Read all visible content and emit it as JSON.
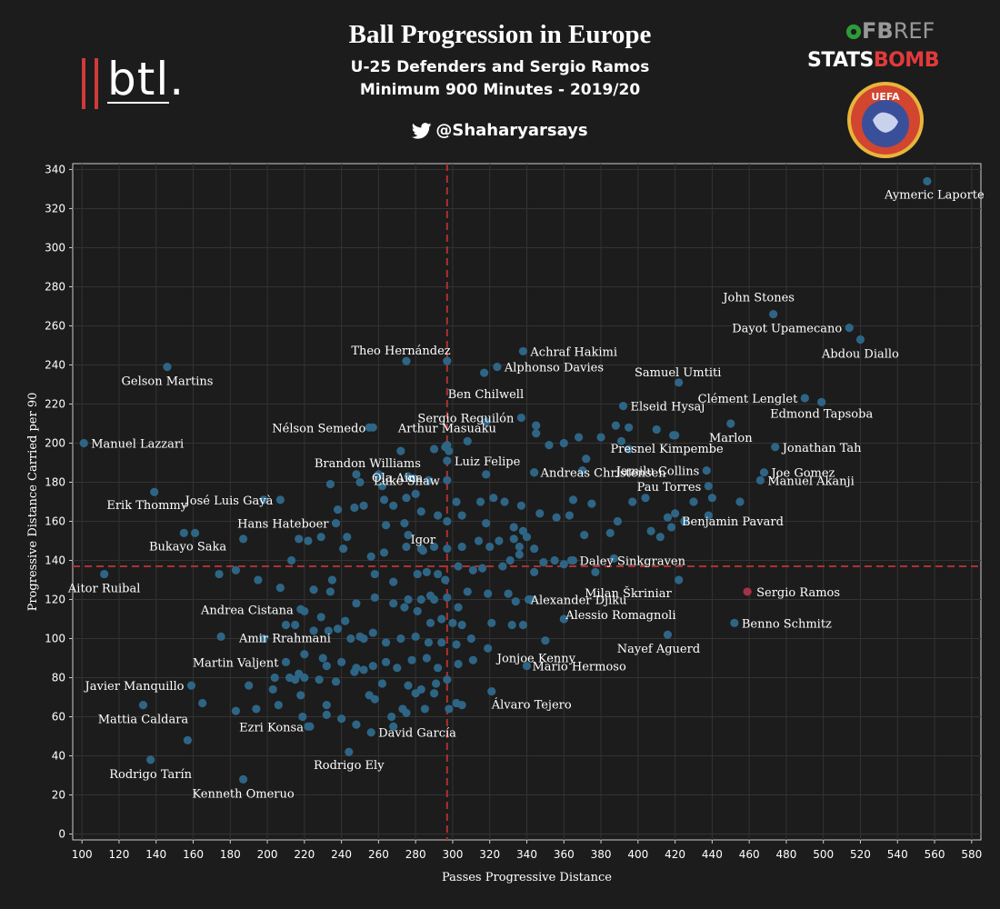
{
  "header": {
    "title": "Ball Progression in Europe",
    "subtitle1": "U-25 Defenders and Sergio Ramos",
    "subtitle2": "Minimum 900 Minutes - 2019/20",
    "twitter": "@Shaharyarsays"
  },
  "logos": {
    "btl": "btl.",
    "fbref_a": "FB",
    "fbref_b": "REF",
    "statsbomb_a": "STATS",
    "statsbomb_b": "BOMB",
    "uefa": "UEFA"
  },
  "colors": {
    "background": "#1c1c1c",
    "point": "#2e6585",
    "highlight": "#a8304a",
    "mean_line": "#b03030",
    "grid": "#333333"
  },
  "chart_data": {
    "type": "scatter",
    "xlabel": "Passes Progressive Distance",
    "ylabel": "Progressive Distance Carried per 90",
    "xlim": [
      95,
      585
    ],
    "ylim": [
      -3,
      343
    ],
    "xticks": [
      100,
      120,
      140,
      160,
      180,
      200,
      220,
      240,
      260,
      280,
      300,
      320,
      340,
      360,
      380,
      400,
      420,
      440,
      460,
      480,
      500,
      520,
      540,
      560,
      580
    ],
    "yticks": [
      0,
      20,
      40,
      60,
      80,
      100,
      120,
      140,
      160,
      180,
      200,
      220,
      240,
      260,
      280,
      300,
      320,
      340
    ],
    "grid": true,
    "mean_x": 297,
    "mean_y": 137,
    "highlight": {
      "name": "Sergio Ramos",
      "x": 459,
      "y": 124
    },
    "labeled_points": [
      {
        "name": "Aymeric Laporte",
        "x": 556,
        "y": 334
      },
      {
        "name": "John Stones",
        "x": 473,
        "y": 266
      },
      {
        "name": "Dayot Upamecano",
        "x": 514,
        "y": 259
      },
      {
        "name": "Abdou Diallo",
        "x": 520,
        "y": 253
      },
      {
        "name": "Gelson Martins",
        "x": 146,
        "y": 239
      },
      {
        "name": "Theo Hernández",
        "x": 275,
        "y": 242
      },
      {
        "name": "Achraf Hakimi",
        "x": 338,
        "y": 247
      },
      {
        "name": "Alphonso Davies",
        "x": 324,
        "y": 239
      },
      {
        "name": "Ben Chilwell",
        "x": 317,
        "y": 236
      },
      {
        "name": "Samuel Umtiti",
        "x": 422,
        "y": 231
      },
      {
        "name": "Clément Lenglet",
        "x": 490,
        "y": 223
      },
      {
        "name": "Edmond Tapsoba",
        "x": 499,
        "y": 221
      },
      {
        "name": "Elseid Hysaj",
        "x": 392,
        "y": 219
      },
      {
        "name": "Sergio Reguilón",
        "x": 337,
        "y": 213
      },
      {
        "name": "Nélson Semedo",
        "x": 257,
        "y": 208
      },
      {
        "name": "Arthur Masuaku",
        "x": 297,
        "y": 199
      },
      {
        "name": "Manuel Lazzari",
        "x": 101,
        "y": 200
      },
      {
        "name": "Marlon",
        "x": 450,
        "y": 210
      },
      {
        "name": "Jonathan Tah",
        "x": 474,
        "y": 198
      },
      {
        "name": "Presnel Kimpembe",
        "x": 419,
        "y": 204
      },
      {
        "name": "Luiz Felipe",
        "x": 297,
        "y": 191
      },
      {
        "name": "Brandon Williams",
        "x": 260,
        "y": 184
      },
      {
        "name": "Ola Aina",
        "x": 279,
        "y": 182
      },
      {
        "name": "Jamilu Collins",
        "x": 437,
        "y": 186
      },
      {
        "name": "Joe Gomez",
        "x": 468,
        "y": 185
      },
      {
        "name": "Luke Shaw",
        "x": 297,
        "y": 181
      },
      {
        "name": "Andreas Christensen",
        "x": 344,
        "y": 185
      },
      {
        "name": "Pau Torres",
        "x": 438,
        "y": 178
      },
      {
        "name": "Manuel Akanji",
        "x": 466,
        "y": 181
      },
      {
        "name": "José Luis Gayà",
        "x": 207,
        "y": 171
      },
      {
        "name": "Erik Thommy",
        "x": 139,
        "y": 175
      },
      {
        "name": "Benjamin Pavard",
        "x": 455,
        "y": 170
      },
      {
        "name": "Hans Hateboer",
        "x": 237,
        "y": 159
      },
      {
        "name": "Bukayo Saka",
        "x": 161,
        "y": 154
      },
      {
        "name": "Igor",
        "x": 284,
        "y": 145
      },
      {
        "name": "Daley Sinkgraven",
        "x": 365,
        "y": 140
      },
      {
        "name": "Aitor Ruibal",
        "x": 112,
        "y": 133
      },
      {
        "name": "Milan Škriniar",
        "x": 422,
        "y": 130
      },
      {
        "name": "Alexander Djiku",
        "x": 342,
        "y": 120
      },
      {
        "name": "Andrea Cistana",
        "x": 218,
        "y": 115
      },
      {
        "name": "Alessio Romagnoli",
        "x": 360,
        "y": 110
      },
      {
        "name": "Benno Schmitz",
        "x": 452,
        "y": 108
      },
      {
        "name": "Amir Rrahmani",
        "x": 210,
        "y": 107
      },
      {
        "name": "Nayef Aguerd",
        "x": 416,
        "y": 102
      },
      {
        "name": "Jonjoe Kenny",
        "x": 350,
        "y": 99
      },
      {
        "name": "Martin Valjent",
        "x": 210,
        "y": 88
      },
      {
        "name": "Mario Hermoso",
        "x": 340,
        "y": 86
      },
      {
        "name": "Javier Manquillo",
        "x": 159,
        "y": 76
      },
      {
        "name": "Álvaro Tejero",
        "x": 321,
        "y": 73
      },
      {
        "name": "Mattia Caldara",
        "x": 133,
        "y": 66
      },
      {
        "name": "Ezri Konsa",
        "x": 223,
        "y": 55
      },
      {
        "name": "David García",
        "x": 256,
        "y": 52
      },
      {
        "name": "Rodrigo Ely",
        "x": 244,
        "y": 42
      },
      {
        "name": "Rodrigo Tarín",
        "x": 137,
        "y": 38
      },
      {
        "name": "Kenneth Omeruo",
        "x": 187,
        "y": 28
      }
    ],
    "other_points": [
      [
        255,
        208
      ],
      [
        297,
        242
      ],
      [
        345,
        209
      ],
      [
        352,
        199
      ],
      [
        368,
        203
      ],
      [
        380,
        203
      ],
      [
        391,
        201
      ],
      [
        395,
        197
      ],
      [
        410,
        207
      ],
      [
        420,
        204
      ],
      [
        395,
        208
      ],
      [
        388,
        209
      ],
      [
        360,
        200
      ],
      [
        345,
        205
      ],
      [
        318,
        211
      ],
      [
        308,
        201
      ],
      [
        290,
        197
      ],
      [
        296,
        198
      ],
      [
        272,
        196
      ],
      [
        298,
        196
      ],
      [
        248,
        184
      ],
      [
        260,
        183
      ],
      [
        276,
        183
      ],
      [
        287,
        181
      ],
      [
        318,
        184
      ],
      [
        344,
        185
      ],
      [
        370,
        186
      ],
      [
        372,
        192
      ],
      [
        250,
        180
      ],
      [
        234,
        179
      ],
      [
        262,
        178
      ],
      [
        263,
        171
      ],
      [
        268,
        168
      ],
      [
        252,
        168
      ],
      [
        247,
        167
      ],
      [
        275,
        172
      ],
      [
        280,
        174
      ],
      [
        302,
        170
      ],
      [
        315,
        170
      ],
      [
        328,
        170
      ],
      [
        322,
        172
      ],
      [
        337,
        168
      ],
      [
        347,
        164
      ],
      [
        365,
        171
      ],
      [
        375,
        169
      ],
      [
        397,
        170
      ],
      [
        404,
        172
      ],
      [
        420,
        164
      ],
      [
        425,
        160
      ],
      [
        438,
        163
      ],
      [
        198,
        171
      ],
      [
        238,
        166
      ],
      [
        264,
        158
      ],
      [
        274,
        159
      ],
      [
        283,
        165
      ],
      [
        292,
        163
      ],
      [
        297,
        160
      ],
      [
        305,
        163
      ],
      [
        318,
        159
      ],
      [
        333,
        157
      ],
      [
        338,
        155
      ],
      [
        356,
        162
      ],
      [
        363,
        163
      ],
      [
        371,
        153
      ],
      [
        385,
        154
      ],
      [
        389,
        160
      ],
      [
        407,
        155
      ],
      [
        412,
        152
      ],
      [
        416,
        162
      ],
      [
        418,
        157
      ],
      [
        440,
        172
      ],
      [
        430,
        170
      ],
      [
        155,
        154
      ],
      [
        187,
        151
      ],
      [
        217,
        151
      ],
      [
        222,
        150
      ],
      [
        229,
        152
      ],
      [
        241,
        146
      ],
      [
        256,
        142
      ],
      [
        263,
        144
      ],
      [
        275,
        147
      ],
      [
        283,
        146
      ],
      [
        290,
        147
      ],
      [
        297,
        146
      ],
      [
        305,
        147
      ],
      [
        314,
        150
      ],
      [
        320,
        147
      ],
      [
        325,
        150
      ],
      [
        333,
        151
      ],
      [
        336,
        147
      ],
      [
        340,
        152
      ],
      [
        344,
        146
      ],
      [
        276,
        153
      ],
      [
        243,
        152
      ],
      [
        213,
        140
      ],
      [
        235,
        130
      ],
      [
        258,
        133
      ],
      [
        268,
        129
      ],
      [
        281,
        133
      ],
      [
        286,
        134
      ],
      [
        292,
        133
      ],
      [
        296,
        130
      ],
      [
        303,
        137
      ],
      [
        311,
        135
      ],
      [
        316,
        136
      ],
      [
        327,
        137
      ],
      [
        331,
        140
      ],
      [
        336,
        143
      ],
      [
        344,
        134
      ],
      [
        349,
        139
      ],
      [
        355,
        140
      ],
      [
        360,
        138
      ],
      [
        364,
        140
      ],
      [
        377,
        134
      ],
      [
        387,
        141
      ],
      [
        174,
        133
      ],
      [
        183,
        135
      ],
      [
        195,
        130
      ],
      [
        207,
        126
      ],
      [
        225,
        125
      ],
      [
        234,
        124
      ],
      [
        248,
        118
      ],
      [
        258,
        121
      ],
      [
        268,
        118
      ],
      [
        274,
        116
      ],
      [
        283,
        120
      ],
      [
        290,
        120
      ],
      [
        297,
        121
      ],
      [
        303,
        116
      ],
      [
        308,
        124
      ],
      [
        319,
        123
      ],
      [
        330,
        123
      ],
      [
        334,
        119
      ],
      [
        341,
        120
      ],
      [
        288,
        122
      ],
      [
        276,
        120
      ],
      [
        281,
        114
      ],
      [
        220,
        114
      ],
      [
        229,
        111
      ],
      [
        238,
        105
      ],
      [
        242,
        109
      ],
      [
        250,
        101
      ],
      [
        257,
        103
      ],
      [
        264,
        98
      ],
      [
        272,
        100
      ],
      [
        280,
        101
      ],
      [
        287,
        98
      ],
      [
        294,
        98
      ],
      [
        302,
        97
      ],
      [
        310,
        100
      ],
      [
        319,
        95
      ],
      [
        321,
        108
      ],
      [
        332,
        107
      ],
      [
        338,
        107
      ],
      [
        288,
        108
      ],
      [
        294,
        110
      ],
      [
        300,
        108
      ],
      [
        305,
        107
      ],
      [
        245,
        100
      ],
      [
        252,
        100
      ],
      [
        233,
        104
      ],
      [
        225,
        104
      ],
      [
        215,
        107
      ],
      [
        175,
        101
      ],
      [
        198,
        100
      ],
      [
        220,
        92
      ],
      [
        230,
        90
      ],
      [
        240,
        88
      ],
      [
        248,
        85
      ],
      [
        257,
        86
      ],
      [
        264,
        88
      ],
      [
        270,
        85
      ],
      [
        278,
        89
      ],
      [
        286,
        90
      ],
      [
        292,
        85
      ],
      [
        303,
        87
      ],
      [
        311,
        89
      ],
      [
        217,
        82
      ],
      [
        232,
        86
      ],
      [
        220,
        80
      ],
      [
        228,
        79
      ],
      [
        237,
        78
      ],
      [
        247,
        83
      ],
      [
        252,
        84
      ],
      [
        204,
        80
      ],
      [
        212,
        80
      ],
      [
        215,
        79
      ],
      [
        190,
        76
      ],
      [
        194,
        64
      ],
      [
        183,
        63
      ],
      [
        276,
        76
      ],
      [
        283,
        74
      ],
      [
        291,
        77
      ],
      [
        297,
        79
      ],
      [
        302,
        67
      ],
      [
        305,
        66
      ],
      [
        298,
        64
      ],
      [
        262,
        77
      ],
      [
        258,
        69
      ],
      [
        255,
        71
      ],
      [
        280,
        72
      ],
      [
        290,
        72
      ],
      [
        232,
        66
      ],
      [
        232,
        61
      ],
      [
        222,
        55
      ],
      [
        219,
        60
      ],
      [
        218,
        71
      ],
      [
        157,
        48
      ],
      [
        165,
        67
      ],
      [
        203,
        74
      ],
      [
        206,
        66
      ],
      [
        240,
        59
      ],
      [
        248,
        56
      ],
      [
        267,
        60
      ],
      [
        273,
        64
      ],
      [
        285,
        64
      ],
      [
        268,
        55
      ],
      [
        275,
        62
      ]
    ]
  }
}
